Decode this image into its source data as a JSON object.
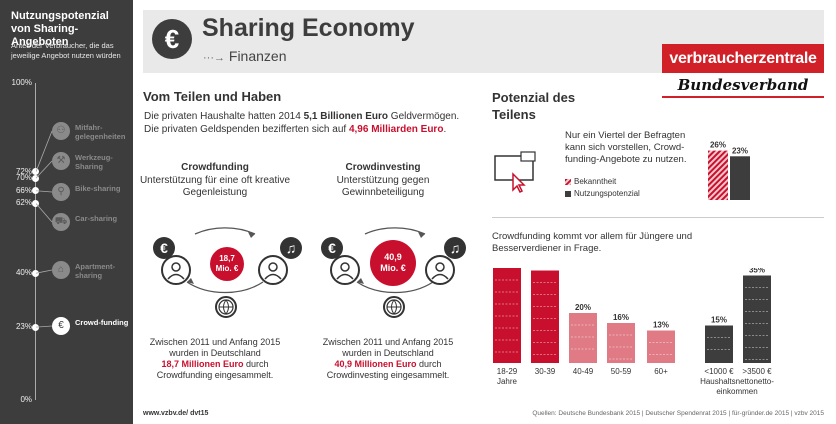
{
  "sidebar": {
    "title": "Nutzungspotenzial von Sharing-Angeboten",
    "subtitle": "Anteil der Verbraucher, die das jeweilige Angebot nutzen würden",
    "axis_top": "100%",
    "axis_bottom": "0%",
    "items": [
      {
        "label": "72%",
        "pct": 72,
        "name": "Mitfahr-gelegenheiten",
        "icon": "car-share-icon",
        "glyph": "⚇",
        "active": false
      },
      {
        "label": "70%",
        "pct": 70,
        "name": "Werkzeug-Sharing",
        "icon": "hammer-icon",
        "glyph": "⚒",
        "active": false
      },
      {
        "label": "66%",
        "pct": 66,
        "name": "Bike-sharing",
        "icon": "bike-icon",
        "glyph": "⚲",
        "active": false
      },
      {
        "label": "62%",
        "pct": 62,
        "name": "Car-sharing",
        "icon": "car-icon",
        "glyph": "⛟",
        "active": false
      },
      {
        "label": "40%",
        "pct": 40,
        "name": "Apartment-sharing",
        "icon": "house-icon",
        "glyph": "⌂",
        "active": false
      },
      {
        "label": "23%",
        "pct": 23,
        "name": "Crowd-funding",
        "icon": "euro-icon",
        "glyph": "€",
        "active": true
      }
    ]
  },
  "header": {
    "title": "Sharing Economy",
    "subtitle": "Finanzen",
    "arrow": "···→",
    "euro_glyph": "€",
    "logo_line1": "verbraucherzentrale",
    "logo_line2": "Bundesverband"
  },
  "vom": {
    "title": "Vom Teilen und Haben",
    "intro_pre": "Die privaten Haushalte hatten 2014 ",
    "intro_b1": "5,1 Billionen Euro",
    "intro_mid": " Geldvermögen. Die privaten Geldspenden bezifferten sich auf ",
    "intro_b2": "4,96 Milliarden Euro",
    "intro_end": "."
  },
  "crowdfunding": {
    "head": "Crowdfunding",
    "desc": "Unterstützung für eine oft kreative Gegenleistung",
    "amount_l1": "18,7",
    "amount_l2": "Mio. €",
    "foot_l1": "Zwischen 2011 und Anfang 2015",
    "foot_l2": "wurden in Deutschland",
    "foot_red": "18,7 Millionen Euro",
    "foot_l3": " durch",
    "foot_l4": "Crowdfunding eingesammelt."
  },
  "crowdinvesting": {
    "head": "Crowdinvesting",
    "desc": "Unterstützung gegen Gewinnbeteiligung",
    "amount_l1": "40,9",
    "amount_l2": "Mio. €",
    "foot_l1": "Zwischen 2011 und Anfang 2015",
    "foot_l2": "wurden in Deutschland",
    "foot_red": "40,9 Millionen Euro",
    "foot_l3": " durch",
    "foot_l4": "Crowdinvesting eingesammelt."
  },
  "icons": {
    "euro": "€",
    "note": "♫"
  },
  "potenzial": {
    "title": "Potenzial des Teilens",
    "text": "Nur ein Viertel der Befragten kann sich vorstellen, Crowd-funding-Angebote zu nutzen.",
    "legend_known": "Bekanntheit",
    "legend_use": "Nutzungspotenzial",
    "crowd_text": "Crowdfunding kommt vor allem für Jüngere und Besserverdiener in Frage."
  },
  "chart_data": [
    {
      "type": "bar",
      "categories": [
        "Bekanntheit",
        "Nutzungspotenzial"
      ],
      "values": [
        26,
        23
      ],
      "labels": [
        "26%",
        "23%"
      ],
      "colors": [
        "#c8102e",
        "#3d3d3d"
      ]
    },
    {
      "type": "bar",
      "categories": [
        "18-29 Jahre",
        "30-39",
        "40-49",
        "50-59",
        "60+",
        "<1000 €",
        ">3500 €"
      ],
      "values": [
        38,
        37,
        20,
        16,
        13,
        15,
        35
      ],
      "labels": [
        "38%",
        "37%",
        "20%",
        "16%",
        "13%",
        "15%",
        "35%"
      ],
      "colors": [
        "#c8102e",
        "#c8102e",
        "#e07b85",
        "#e07b85",
        "#e07b85",
        "#3d3d3d",
        "#3d3d3d"
      ],
      "group_label": "Haushaltsnetto-einkommen"
    }
  ],
  "footer": {
    "url": "www.vzbv.de/ dvt15",
    "sources": "Quellen: Deutsche Bundesbank 2015 | Deutscher Spendenrat 2015 | für-gründer.de 2015 | vzbv 2015"
  }
}
